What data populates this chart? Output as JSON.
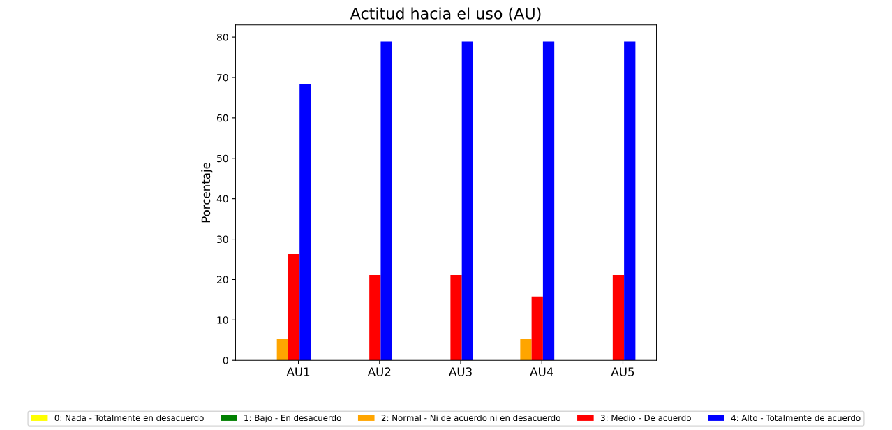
{
  "chart_data": {
    "type": "bar",
    "title": "Actitud hacia el uso (AU)",
    "ylabel": "Porcentaje",
    "categories": [
      "AU1",
      "AU2",
      "AU3",
      "AU4",
      "AU5"
    ],
    "series": [
      {
        "name": "0: Nada - Totalmente en desacuerdo",
        "color": "#ffff00",
        "values": [
          0,
          0,
          0,
          0,
          0
        ]
      },
      {
        "name": "1: Bajo - En desacuerdo",
        "color": "#008000",
        "values": [
          0,
          0,
          0,
          0,
          0
        ]
      },
      {
        "name": "2: Normal - Ni de acuerdo ni en desacuerdo",
        "color": "#ffa500",
        "values": [
          5.3,
          0,
          0,
          5.3,
          0
        ]
      },
      {
        "name": "3: Medio - De acuerdo",
        "color": "#ff0000",
        "values": [
          26.3,
          21.1,
          21.1,
          15.8,
          21.1
        ]
      },
      {
        "name": "4: Alto - Totalmente de acuerdo",
        "color": "#0000ff",
        "values": [
          68.4,
          78.9,
          78.9,
          78.9,
          78.9
        ]
      }
    ],
    "ylim": [
      0,
      83
    ],
    "yticks": [
      0,
      10,
      20,
      30,
      40,
      50,
      60,
      70,
      80
    ],
    "grid": false,
    "legend": "bottom"
  }
}
